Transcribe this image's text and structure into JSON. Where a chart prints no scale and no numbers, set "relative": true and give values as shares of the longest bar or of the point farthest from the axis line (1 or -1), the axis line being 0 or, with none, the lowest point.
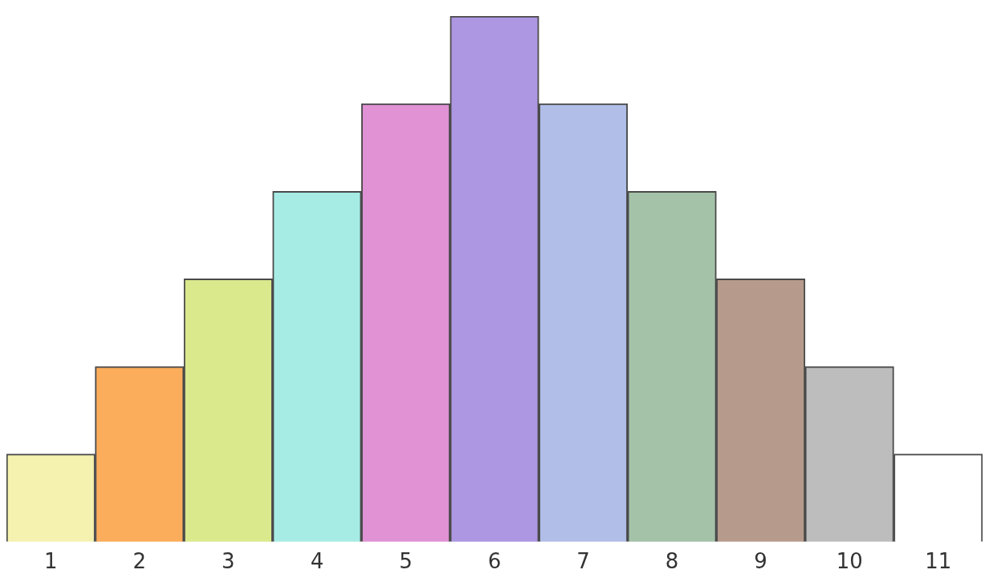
{
  "chart_data": {
    "type": "bar",
    "relative": true,
    "categories": [
      "1",
      "2",
      "3",
      "4",
      "5",
      "6",
      "7",
      "8",
      "9",
      "10",
      "11"
    ],
    "values": [
      0.1667,
      0.3333,
      0.5,
      0.6667,
      0.8333,
      1,
      0.8333,
      0.6667,
      0.5,
      0.3333,
      0.1667
    ],
    "colors": [
      "#f5f2b0",
      "#fbad5c",
      "#dbe98d",
      "#a6ece5",
      "#e092d5",
      "#ad96e2",
      "#b0bee8",
      "#a4c2a8",
      "#b69a8b",
      "#bdbdbd",
      "#ffffff"
    ]
  }
}
